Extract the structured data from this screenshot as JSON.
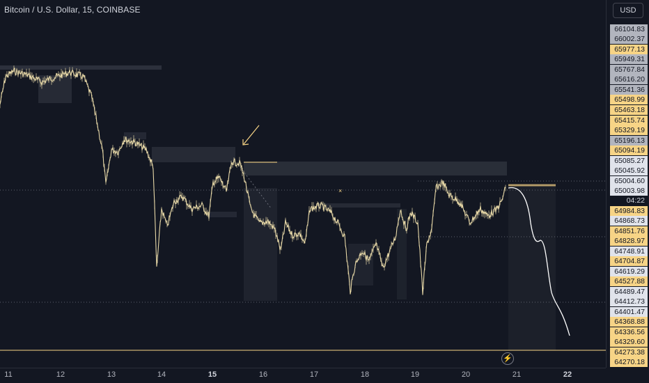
{
  "symbol": {
    "title": "Bitcoin / U.S. Dollar, 15, COINBASE"
  },
  "currency_button": "USD",
  "price_labels": [
    {
      "text": "66104.83",
      "style": "gray"
    },
    {
      "text": "66002.37",
      "style": "gray"
    },
    {
      "text": "65977.13",
      "style": "gold"
    },
    {
      "text": "65949.31",
      "style": "gray"
    },
    {
      "text": "65767.84",
      "style": "gray"
    },
    {
      "text": "65616.20",
      "style": "gray"
    },
    {
      "text": "65541.36",
      "style": "gray"
    },
    {
      "text": "65498.99",
      "style": "gold"
    },
    {
      "text": "65463.18",
      "style": "gold"
    },
    {
      "text": "65415.74",
      "style": "gold"
    },
    {
      "text": "65329.19",
      "style": "gold"
    },
    {
      "text": "65196.13",
      "style": "gray"
    },
    {
      "text": "65094.19",
      "style": "gold"
    },
    {
      "text": "65085.27",
      "style": "white"
    },
    {
      "text": "65045.92",
      "style": "white"
    },
    {
      "text": "65004.60",
      "style": "white"
    },
    {
      "text": "65003.98",
      "style": "white"
    },
    {
      "text": "04:22",
      "style": "dark"
    },
    {
      "text": "64984.83",
      "style": "gold"
    },
    {
      "text": "64868.73",
      "style": "white"
    },
    {
      "text": "64851.76",
      "style": "gold"
    },
    {
      "text": "64828.97",
      "style": "gold"
    },
    {
      "text": "64748.91",
      "style": "white"
    },
    {
      "text": "64704.87",
      "style": "gold"
    },
    {
      "text": "64619.29",
      "style": "white"
    },
    {
      "text": "64527.88",
      "style": "gold"
    },
    {
      "text": "64489.47",
      "style": "white"
    },
    {
      "text": "64412.73",
      "style": "white"
    },
    {
      "text": "64401.47",
      "style": "white"
    },
    {
      "text": "64368.88",
      "style": "gold"
    },
    {
      "text": "64336.56",
      "style": "gold"
    },
    {
      "text": "64329.60",
      "style": "gold"
    },
    {
      "text": "64273.38",
      "style": "gold"
    },
    {
      "text": "64270.18",
      "style": "gold"
    }
  ],
  "time_labels": [
    {
      "text": "11",
      "bold": false
    },
    {
      "text": "12",
      "bold": false
    },
    {
      "text": "13",
      "bold": false
    },
    {
      "text": "14",
      "bold": false
    },
    {
      "text": "15",
      "bold": true
    },
    {
      "text": "16",
      "bold": false
    },
    {
      "text": "17",
      "bold": false
    },
    {
      "text": "18",
      "bold": false
    },
    {
      "text": "19",
      "bold": false
    },
    {
      "text": "20",
      "bold": false
    },
    {
      "text": "21",
      "bold": false
    },
    {
      "text": "22",
      "bold": true
    }
  ],
  "colors": {
    "background": "#131722",
    "candle": "#e8d9a8",
    "zone": "#363a45",
    "gold": "#f7d486",
    "projection": "#ffffff"
  },
  "icons": {
    "lightning": "lightning-icon",
    "arrow": "arrow-annotation-icon"
  }
}
